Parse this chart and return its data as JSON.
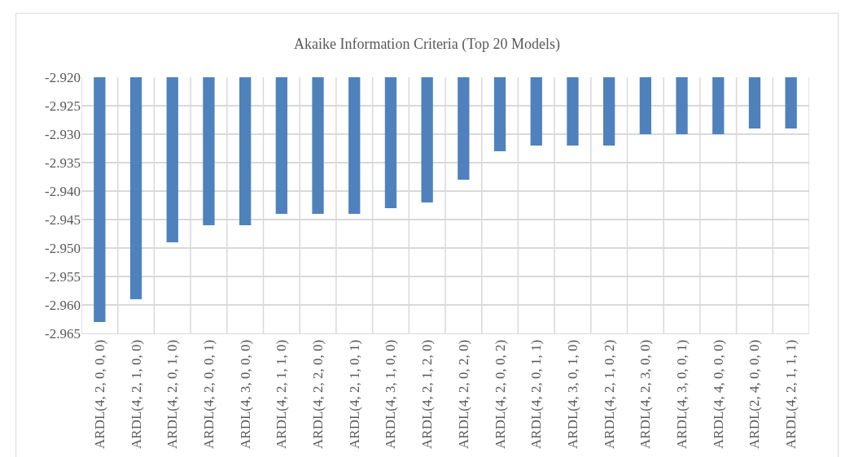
{
  "chart_data": {
    "type": "bar",
    "title": "Akaike Information Criteria (Top 20 Models)",
    "categories": [
      "ARDL(4, 2, 0, 0, 0)",
      "ARDL(4, 2, 1, 0, 0)",
      "ARDL(4, 2, 0, 1, 0)",
      "ARDL(4, 2, 0, 0, 1)",
      "ARDL(4, 3, 0, 0, 0)",
      "ARDL(4, 2, 1, 1, 0)",
      "ARDL(4, 2, 2, 0, 0)",
      "ARDL(4, 2, 1, 0, 1)",
      "ARDL(4, 3, 1, 0, 0)",
      "ARDL(4, 2, 1, 2, 0)",
      "ARDL(4, 2, 0, 2, 0)",
      "ARDL(4, 2, 0, 0, 2)",
      "ARDL(4, 2, 0, 1, 1)",
      "ARDL(4, 3, 0, 1, 0)",
      "ARDL(4, 2, 1, 0, 2)",
      "ARDL(4, 2, 3, 0, 0)",
      "ARDL(4, 3, 0, 0, 1)",
      "ARDL(4, 4, 0, 0, 0)",
      "ARDL(2, 4, 0, 0, 0)",
      "ARDL(4, 2, 1, 1, 1)"
    ],
    "values": [
      -2.963,
      -2.959,
      -2.949,
      -2.946,
      -2.946,
      -2.944,
      -2.944,
      -2.944,
      -2.943,
      -2.942,
      -2.938,
      -2.933,
      -2.932,
      -2.932,
      -2.932,
      -2.93,
      -2.93,
      -2.93,
      -2.929,
      -2.929
    ],
    "color": "#4f81bd",
    "ylim": [
      -2.965,
      -2.92
    ],
    "yticks": [
      {
        "value": -2.965,
        "label": "-2.965"
      },
      {
        "value": -2.96,
        "label": "-2.960"
      },
      {
        "value": -2.955,
        "label": "-2.955"
      },
      {
        "value": -2.95,
        "label": "-2.950"
      },
      {
        "value": -2.945,
        "label": "-2.945"
      },
      {
        "value": -2.94,
        "label": "-2.940"
      },
      {
        "value": -2.935,
        "label": "-2.935"
      },
      {
        "value": -2.93,
        "label": "-2.930"
      },
      {
        "value": -2.925,
        "label": "-2.925"
      },
      {
        "value": -2.92,
        "label": "-2.920"
      }
    ],
    "grid": true
  }
}
